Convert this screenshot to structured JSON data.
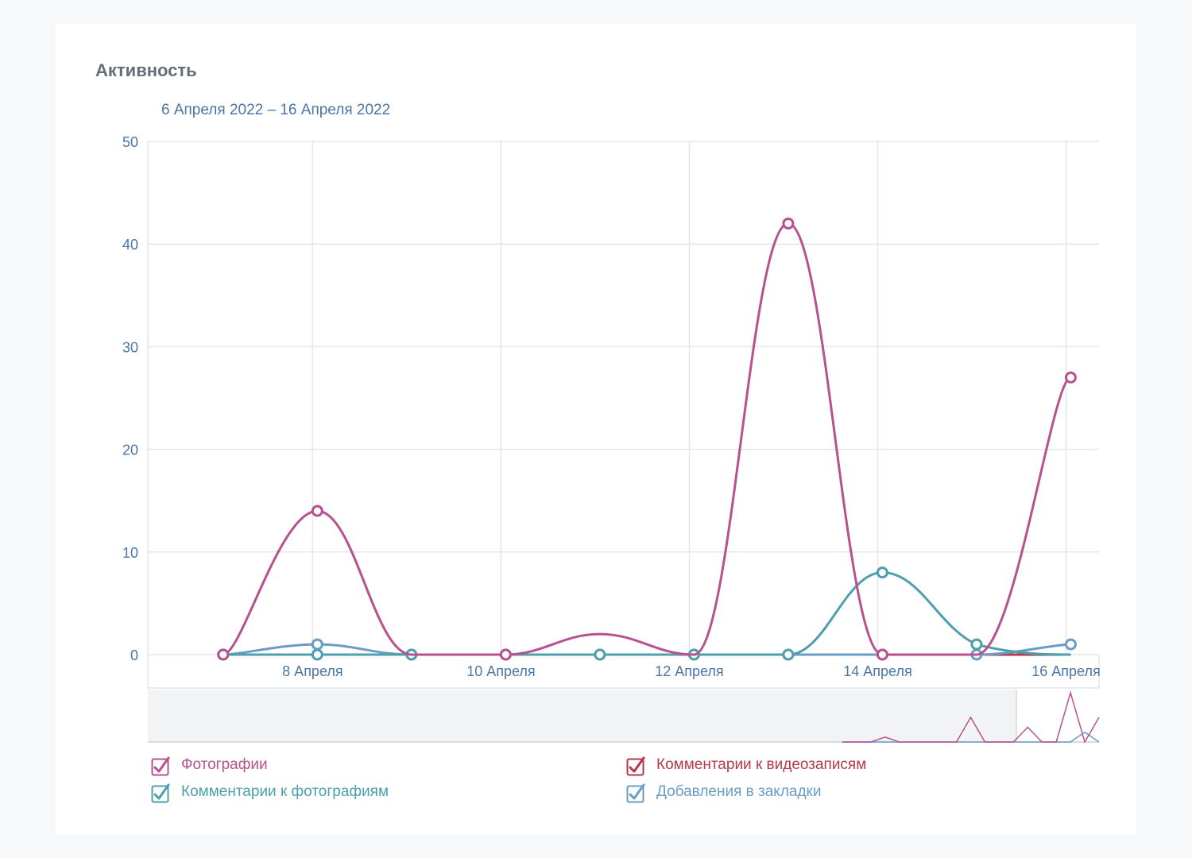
{
  "header": {
    "title": "Активность",
    "date_range": "6 Апреля 2022 – 16 Апреля 2022"
  },
  "chart_data": {
    "type": "line",
    "title": "Активность",
    "subtitle": "6 Апреля 2022 – 16 Апреля 2022",
    "ylim": [
      0,
      50
    ],
    "yticks": [
      0,
      10,
      20,
      30,
      40,
      50
    ],
    "x_axis_note": "days (6 = 6 Апреля); points fall at day centers",
    "xlim": [
      6.25,
      16.35
    ],
    "x_tick_positions": [
      8,
      10,
      12,
      14,
      16
    ],
    "x_tick_labels": [
      "8 Апреля",
      "10 Апреля",
      "12 Апреля",
      "14 Апреля",
      "16 Апреля"
    ],
    "grid": true,
    "series": [
      {
        "name": "Фотографии",
        "color": "#b7518f",
        "x": [
          7.05,
          8.05,
          9.05,
          10.05,
          11.05,
          12.05,
          13.05,
          14.05,
          15.05,
          16.05
        ],
        "values": [
          0,
          14,
          0,
          0,
          2,
          0,
          42,
          0,
          0,
          27
        ],
        "markers": [
          true,
          true,
          false,
          true,
          false,
          false,
          true,
          true,
          false,
          true
        ]
      },
      {
        "name": "Комментарии к фотографиям",
        "color": "#4e9fae",
        "x": [
          7.05,
          8.05,
          9.05,
          10.05,
          11.05,
          12.05,
          13.05,
          14.05,
          15.05,
          16.05
        ],
        "values": [
          0,
          0,
          0,
          0,
          0,
          0,
          0,
          8,
          1,
          0
        ],
        "markers": [
          true,
          true,
          true,
          true,
          true,
          true,
          true,
          true,
          true,
          false
        ]
      },
      {
        "name": "Комментарии к видеозаписям",
        "color": "#b33a4d",
        "x": [
          7.05,
          8.05,
          9.05,
          10.05,
          11.05,
          12.05,
          13.05,
          14.05,
          15.05,
          16.05
        ],
        "values": [
          0,
          0,
          0,
          0,
          0,
          0,
          0,
          0,
          0,
          0
        ],
        "markers": [
          false,
          false,
          false,
          false,
          false,
          false,
          false,
          false,
          false,
          false
        ]
      },
      {
        "name": "Добавления в закладки",
        "color": "#6b9cc4",
        "x": [
          7.05,
          8.05,
          9.05,
          10.05,
          11.05,
          12.05,
          13.05,
          14.05,
          15.05,
          16.05
        ],
        "values": [
          0,
          1,
          0,
          0,
          0,
          0,
          0,
          0,
          0,
          1
        ],
        "markers": [
          true,
          true,
          true,
          true,
          true,
          true,
          true,
          true,
          true,
          true
        ]
      }
    ],
    "navigator": {
      "photos": [
        0,
        0,
        0,
        1,
        0,
        0,
        0,
        0,
        0,
        5,
        0,
        0,
        0,
        3,
        0,
        0,
        10,
        0,
        5
      ],
      "photo_comments": [
        0,
        0,
        0,
        0,
        0,
        0,
        0,
        0,
        0,
        0,
        0,
        0,
        0,
        0,
        0,
        0,
        0,
        2,
        0
      ]
    }
  },
  "legend": {
    "items": [
      {
        "label": "Фотографии",
        "checked": true,
        "color": "#b7518f"
      },
      {
        "label": "Комментарии к видеозаписям",
        "checked": true,
        "color": "#b33a4d"
      },
      {
        "label": "Комментарии к фотографиям",
        "checked": true,
        "color": "#4e9fae"
      },
      {
        "label": "Добавления в закладки",
        "checked": true,
        "color": "#6b9cc4"
      }
    ]
  },
  "colors": {
    "axis_text": "#4a76a8",
    "grid": "#e3e6ea",
    "navigator_bg": "#f2f3f5"
  }
}
